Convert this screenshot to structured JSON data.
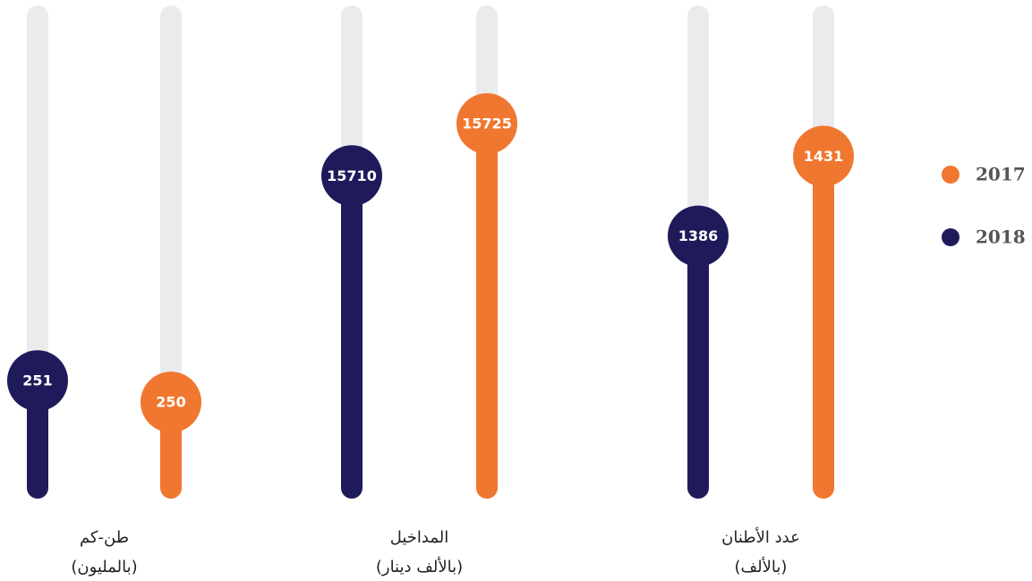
{
  "chart_data": {
    "type": "bar",
    "groups": [
      {
        "label": "طن-كم",
        "sublabel": "(بالمليون)",
        "ylim": [
          246,
          268
        ]
      },
      {
        "label": "المداخيل",
        "sublabel": "(بالألف دينار)",
        "ylim": [
          15620,
          15756
        ]
      },
      {
        "label": "عدد الأطنان",
        "sublabel": "(بالألف)",
        "ylim": [
          1244,
          1510
        ]
      }
    ],
    "series": [
      {
        "name": "2017",
        "color": "#f07730",
        "values": [
          250,
          15725,
          1431
        ]
      },
      {
        "name": "2018",
        "color": "#1f1b5b",
        "values": [
          251,
          15710,
          1386
        ]
      }
    ]
  }
}
